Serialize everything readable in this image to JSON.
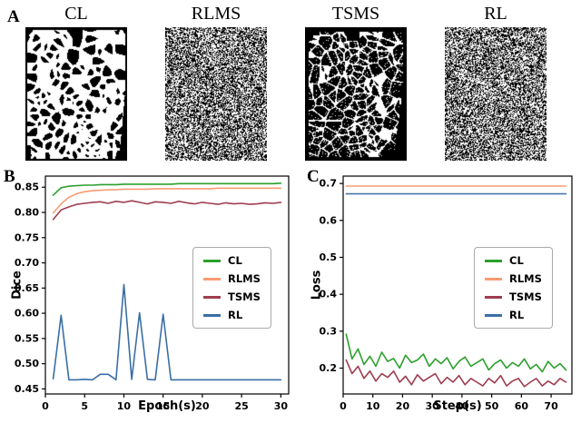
{
  "figure": {
    "panel_a_letter": "A",
    "panel_b_letter": "B",
    "panel_c_letter": "C"
  },
  "panel_a": {
    "masks": [
      {
        "label": "CL",
        "pattern": "trabecular-thick-mask"
      },
      {
        "label": "RLMS",
        "pattern": "salt-pepper-noise-mask"
      },
      {
        "label": "TSMS",
        "pattern": "trabecular-thin-mask"
      },
      {
        "label": "RL",
        "pattern": "salt-pepper-noise-mask"
      }
    ]
  },
  "chart_data": [
    {
      "id": "dice",
      "type": "line",
      "title": "",
      "xlabel": "Epoch(s)",
      "ylabel": "Dice",
      "xlim": [
        0,
        31
      ],
      "ylim": [
        0.44,
        0.872
      ],
      "xticks": [
        0,
        5,
        10,
        15,
        20,
        25,
        30
      ],
      "xtick_labels": [
        "0",
        "5",
        "10",
        "15",
        "20",
        "25",
        "30"
      ],
      "yticks": [
        0.45,
        0.5,
        0.55,
        0.6,
        0.65,
        0.7,
        0.75,
        0.8,
        0.85
      ],
      "ytick_labels": [
        "0.45",
        "0.50",
        "0.55",
        "0.60",
        "0.65",
        "0.70",
        "0.75",
        "0.80",
        "0.85"
      ],
      "legend_position": "center-right",
      "grid": false,
      "x": [
        1,
        2,
        3,
        4,
        5,
        6,
        7,
        8,
        9,
        10,
        11,
        12,
        13,
        14,
        15,
        16,
        17,
        18,
        19,
        20,
        21,
        22,
        23,
        24,
        25,
        26,
        27,
        28,
        29,
        30
      ],
      "series": [
        {
          "name": "CL",
          "color": "#2ca02c",
          "values": [
            0.834,
            0.849,
            0.852,
            0.853,
            0.854,
            0.854,
            0.855,
            0.855,
            0.855,
            0.856,
            0.856,
            0.856,
            0.856,
            0.856,
            0.856,
            0.856,
            0.857,
            0.857,
            0.857,
            0.857,
            0.857,
            0.857,
            0.857,
            0.857,
            0.857,
            0.857,
            0.857,
            0.857,
            0.857,
            0.858
          ]
        },
        {
          "name": "RLMS",
          "color": "#fa9b72",
          "values": [
            0.799,
            0.817,
            0.83,
            0.837,
            0.841,
            0.843,
            0.844,
            0.845,
            0.845,
            0.846,
            0.846,
            0.846,
            0.846,
            0.847,
            0.847,
            0.847,
            0.847,
            0.847,
            0.847,
            0.847,
            0.847,
            0.848,
            0.848,
            0.848,
            0.848,
            0.848,
            0.848,
            0.848,
            0.848,
            0.848
          ]
        },
        {
          "name": "TSMS",
          "color": "#9e3d50",
          "values": [
            0.786,
            0.805,
            0.811,
            0.816,
            0.818,
            0.82,
            0.821,
            0.818,
            0.822,
            0.82,
            0.823,
            0.82,
            0.817,
            0.821,
            0.82,
            0.818,
            0.822,
            0.819,
            0.817,
            0.82,
            0.818,
            0.816,
            0.819,
            0.817,
            0.818,
            0.816,
            0.817,
            0.819,
            0.818,
            0.82
          ]
        },
        {
          "name": "RL",
          "color": "#3a6ea5",
          "values": [
            0.47,
            0.596,
            0.468,
            0.468,
            0.469,
            0.468,
            0.479,
            0.479,
            0.468,
            0.657,
            0.469,
            0.601,
            0.469,
            0.468,
            0.598,
            0.468,
            0.468,
            0.468,
            0.468,
            0.468,
            0.468,
            0.468,
            0.468,
            0.468,
            0.468,
            0.468,
            0.468,
            0.468,
            0.468,
            0.468
          ]
        }
      ]
    },
    {
      "id": "loss",
      "type": "line",
      "title": "",
      "xlabel": "Step(s)",
      "ylabel": "Loss",
      "xlim": [
        0,
        77
      ],
      "ylim": [
        0.13,
        0.72
      ],
      "xticks": [
        0,
        10,
        20,
        30,
        40,
        50,
        60,
        70
      ],
      "xtick_labels": [
        "0",
        "10",
        "20",
        "30",
        "40",
        "50",
        "60",
        "70"
      ],
      "yticks": [
        0.2,
        0.3,
        0.4,
        0.5,
        0.6,
        0.7
      ],
      "ytick_labels": [
        "0.2",
        "0.3",
        "0.4",
        "0.5",
        "0.6",
        "0.7"
      ],
      "legend_position": "center-right",
      "grid": false,
      "x": [
        1,
        3,
        5,
        7,
        9,
        11,
        13,
        15,
        17,
        19,
        21,
        23,
        25,
        27,
        29,
        31,
        33,
        35,
        37,
        39,
        41,
        43,
        45,
        47,
        49,
        51,
        53,
        55,
        57,
        59,
        61,
        63,
        65,
        67,
        69,
        71,
        73,
        75
      ],
      "series": [
        {
          "name": "CL",
          "color": "#2ca02c",
          "values": [
            0.292,
            0.225,
            0.252,
            0.21,
            0.232,
            0.205,
            0.243,
            0.218,
            0.226,
            0.2,
            0.235,
            0.215,
            0.222,
            0.238,
            0.205,
            0.225,
            0.212,
            0.228,
            0.198,
            0.218,
            0.23,
            0.205,
            0.215,
            0.225,
            0.195,
            0.212,
            0.222,
            0.2,
            0.215,
            0.205,
            0.225,
            0.198,
            0.21,
            0.19,
            0.218,
            0.2,
            0.212,
            0.195
          ]
        },
        {
          "name": "RLMS",
          "color": "#fa9b72",
          "values": [
            0.693,
            0.693,
            0.693,
            0.693,
            0.693,
            0.693,
            0.693,
            0.693,
            0.693,
            0.693,
            0.693,
            0.693,
            0.693,
            0.693,
            0.693,
            0.693,
            0.693,
            0.693,
            0.693,
            0.693,
            0.693,
            0.693,
            0.693,
            0.693,
            0.693,
            0.693,
            0.693,
            0.693,
            0.693,
            0.693,
            0.693,
            0.693,
            0.693,
            0.693,
            0.693,
            0.693,
            0.693,
            0.693
          ]
        },
        {
          "name": "TSMS",
          "color": "#9e3d50",
          "values": [
            0.222,
            0.185,
            0.205,
            0.172,
            0.192,
            0.165,
            0.185,
            0.175,
            0.192,
            0.162,
            0.178,
            0.155,
            0.182,
            0.165,
            0.175,
            0.185,
            0.158,
            0.175,
            0.162,
            0.18,
            0.155,
            0.172,
            0.162,
            0.152,
            0.172,
            0.16,
            0.18,
            0.152,
            0.165,
            0.172,
            0.15,
            0.162,
            0.172,
            0.152,
            0.165,
            0.155,
            0.172,
            0.162
          ]
        },
        {
          "name": "RL",
          "color": "#3a6ea5",
          "values": [
            0.672,
            0.672,
            0.672,
            0.672,
            0.672,
            0.672,
            0.672,
            0.672,
            0.672,
            0.672,
            0.672,
            0.672,
            0.672,
            0.672,
            0.672,
            0.672,
            0.672,
            0.672,
            0.672,
            0.672,
            0.672,
            0.672,
            0.672,
            0.672,
            0.672,
            0.672,
            0.672,
            0.672,
            0.672,
            0.672,
            0.672,
            0.672,
            0.672,
            0.672,
            0.672,
            0.672,
            0.672,
            0.672
          ]
        }
      ]
    }
  ]
}
